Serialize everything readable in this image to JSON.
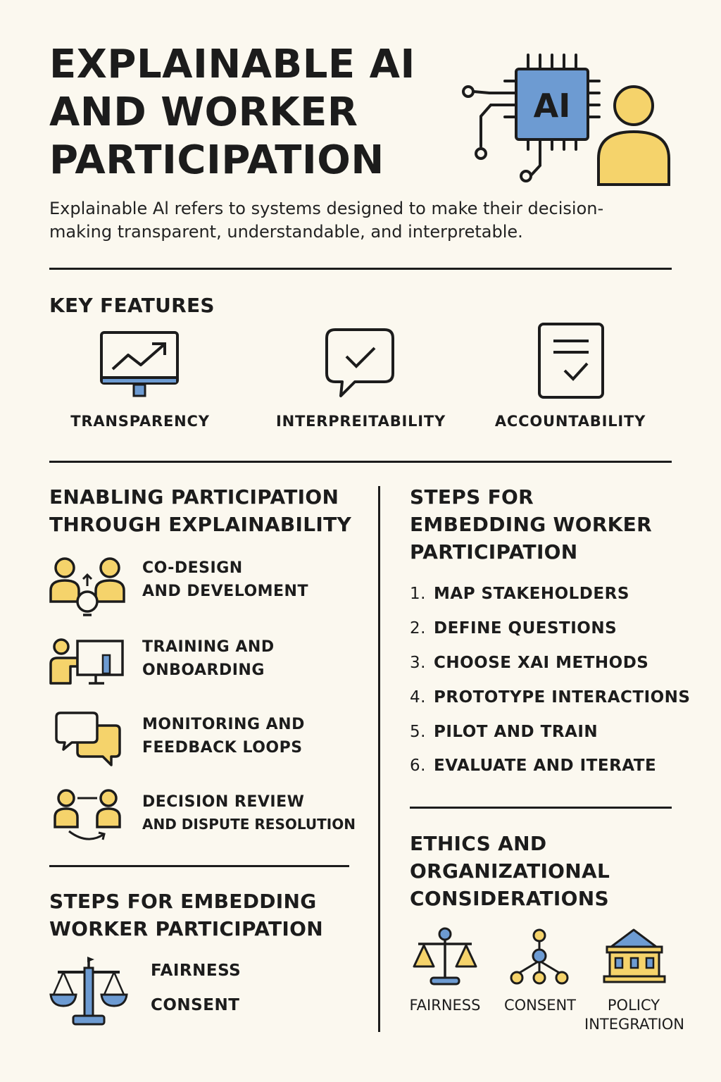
{
  "header": {
    "title_lines": [
      "EXPLAINABLE AI",
      "AND WORKER",
      "PARTICIPATION"
    ],
    "chip_text": "AI",
    "intro_line1": "Explainable Al refers to systems designed to make their decision-",
    "intro_line2": "making transparent, understandable, and interpretable."
  },
  "key_features": {
    "heading": "KEY FEATURES",
    "items": [
      {
        "label": "TRANSPARENCY",
        "icon": "monitor-chart-icon"
      },
      {
        "label": "INTERPREITABILITY",
        "icon": "speech-check-icon"
      },
      {
        "label": "ACCOUNTABILITY",
        "icon": "document-check-icon"
      }
    ]
  },
  "enabling": {
    "heading_line1": "ENABLING PARTICIPATION",
    "heading_line2": "THROUGH EXPLAINABILITY",
    "items": [
      {
        "line1": "CO-DESIGN",
        "line2": "AND DEVELOMENT",
        "icon": "people-idea-icon"
      },
      {
        "line1": "TRAINING AND",
        "line2": "ONBOARDING",
        "icon": "presenter-board-icon"
      },
      {
        "line1": "MONITORING AND",
        "line2": "FEEDBACK LOOPS",
        "icon": "chat-bubbles-icon"
      },
      {
        "line1": "DECISION REVIEW",
        "line2": "AND DISPUTE RESOLUTION",
        "icon": "people-exchange-icon"
      }
    ]
  },
  "steps_left": {
    "heading_line1": "STEPS FOR EMBEDDING",
    "heading_line2": "WORKER PARTICIPATION",
    "items": [
      "FAIRNESS",
      "CONSENT"
    ]
  },
  "steps_right": {
    "heading_line1": "STEPS FOR",
    "heading_line2": "EMBEDDING WORKER",
    "heading_line3": "PARTICIPATION",
    "items": [
      {
        "num": "1.",
        "text": "MAP STAKEHOLDERS"
      },
      {
        "num": "2.",
        "text": "DEFINE QUESTIONS"
      },
      {
        "num": "3.",
        "text": "CHOOSE XAI METHODS"
      },
      {
        "num": "4.",
        "text": "PROTOTYPE INTERACTIONS"
      },
      {
        "num": "5.",
        "text": "PILOT AND TRAIN"
      },
      {
        "num": "6.",
        "text": "EVALUATE AND ITERATE"
      }
    ]
  },
  "ethics": {
    "heading_line1": "ETHICS AND",
    "heading_line2": "ORGANIZATIONAL",
    "heading_line3": "CONSIDERATIONS",
    "items": [
      {
        "line1": "FAIRNESS",
        "line2": "",
        "icon": "scales-icon"
      },
      {
        "line1": "CONSENT",
        "line2": "",
        "icon": "hierarchy-icon"
      },
      {
        "line1": "POLICY",
        "line2": "INTEGRATION",
        "icon": "building-icon"
      }
    ]
  },
  "colors": {
    "background": "#fbf8ef",
    "ink": "#1c1c1c",
    "yellow": "#f5d36b",
    "blue": "#6d9bd2"
  }
}
